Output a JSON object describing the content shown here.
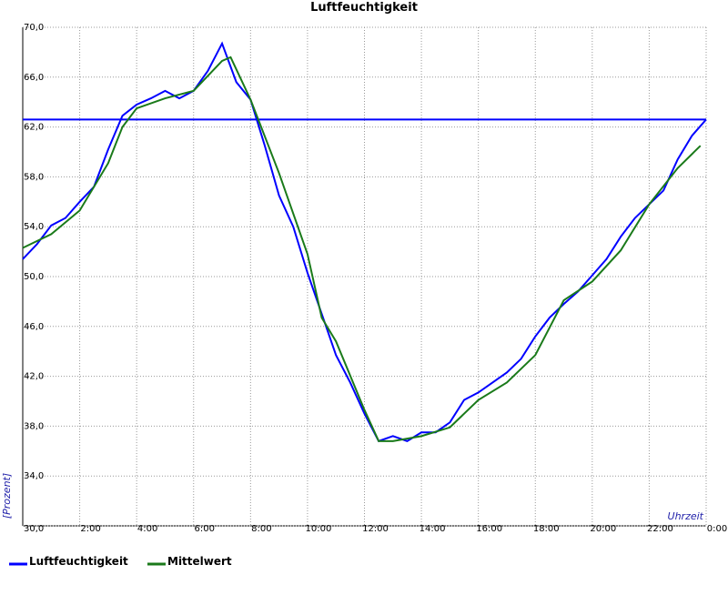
{
  "chart_data": {
    "type": "line",
    "title": "Luftfeuchtigkeit",
    "y_label": "[Prozent]",
    "x_label": "Uhrzeit",
    "xlim": [
      0,
      24
    ],
    "ylim": [
      30,
      70
    ],
    "xticks": [
      {
        "value": 2,
        "label": "2:00"
      },
      {
        "value": 4,
        "label": "4:00"
      },
      {
        "value": 6,
        "label": "6:00"
      },
      {
        "value": 8,
        "label": "8:00"
      },
      {
        "value": 10,
        "label": "10:00"
      },
      {
        "value": 12,
        "label": "12:00"
      },
      {
        "value": 14,
        "label": "14:00"
      },
      {
        "value": 16,
        "label": "16:00"
      },
      {
        "value": 18,
        "label": "18:00"
      },
      {
        "value": 20,
        "label": "20:00"
      },
      {
        "value": 22,
        "label": "22:00"
      },
      {
        "value": 24,
        "label": "0:00"
      }
    ],
    "yticks": [
      {
        "value": 30,
        "label": "30,0"
      },
      {
        "value": 34,
        "label": "34,0"
      },
      {
        "value": 38,
        "label": "38,0"
      },
      {
        "value": 42,
        "label": "42,0"
      },
      {
        "value": 46,
        "label": "46,0"
      },
      {
        "value": 50,
        "label": "50,0"
      },
      {
        "value": 54,
        "label": "54,0"
      },
      {
        "value": 58,
        "label": "58,0"
      },
      {
        "value": 62,
        "label": "62,0"
      },
      {
        "value": 66,
        "label": "66,0"
      },
      {
        "value": 70,
        "label": "70,0"
      }
    ],
    "grid": true,
    "reference_line": {
      "value": 62.6,
      "color": "#0000ff"
    },
    "series": [
      {
        "name": "Luftfeuchtigkeit",
        "color": "#0000ff",
        "x": [
          0,
          0.5,
          1,
          1.5,
          2,
          2.5,
          3,
          3.5,
          4,
          4.5,
          5,
          5.5,
          6,
          6.5,
          7,
          7.5,
          8,
          8.5,
          9,
          9.5,
          10,
          10.5,
          11,
          11.5,
          12,
          12.5,
          13,
          13.5,
          14,
          14.5,
          15,
          15.5,
          16,
          16.5,
          17,
          17.5,
          18,
          18.5,
          19,
          19.5,
          20,
          20.5,
          21,
          21.5,
          22,
          22.5,
          23,
          23.5,
          24
        ],
        "values": [
          51.4,
          52.6,
          54.1,
          54.7,
          56,
          57.2,
          60.2,
          62.9,
          63.8,
          64.3,
          64.9,
          64.3,
          64.9,
          66.5,
          68.7,
          65.6,
          64.2,
          60.5,
          56.5,
          54,
          50.3,
          47,
          43.7,
          41.5,
          39,
          36.8,
          37.2,
          36.8,
          37.5,
          37.5,
          38.3,
          40.1,
          40.7,
          41.5,
          42.3,
          43.4,
          45.2,
          46.7,
          47.8,
          48.8,
          50.1,
          51.4,
          53.2,
          54.7,
          55.8,
          56.9,
          59.4,
          61.3,
          62.6
        ]
      },
      {
        "name": "Mittelwert",
        "color": "#1a7a1a",
        "x": [
          0,
          1,
          2,
          3,
          3.5,
          4,
          5,
          6,
          7,
          7.3,
          8,
          9,
          10,
          10.5,
          11,
          12,
          12.5,
          13,
          14,
          15,
          16,
          17,
          18,
          19,
          20,
          21,
          22,
          23,
          23.8
        ],
        "values": [
          52.3,
          53.4,
          55.3,
          59.1,
          62,
          63.5,
          64.3,
          64.9,
          67.3,
          67.6,
          64.2,
          58.3,
          51.8,
          46.7,
          44.8,
          39.3,
          36.8,
          36.8,
          37.2,
          37.9,
          40.1,
          41.5,
          43.7,
          48.1,
          49.6,
          52.1,
          55.8,
          58.7,
          60.5
        ]
      }
    ]
  }
}
